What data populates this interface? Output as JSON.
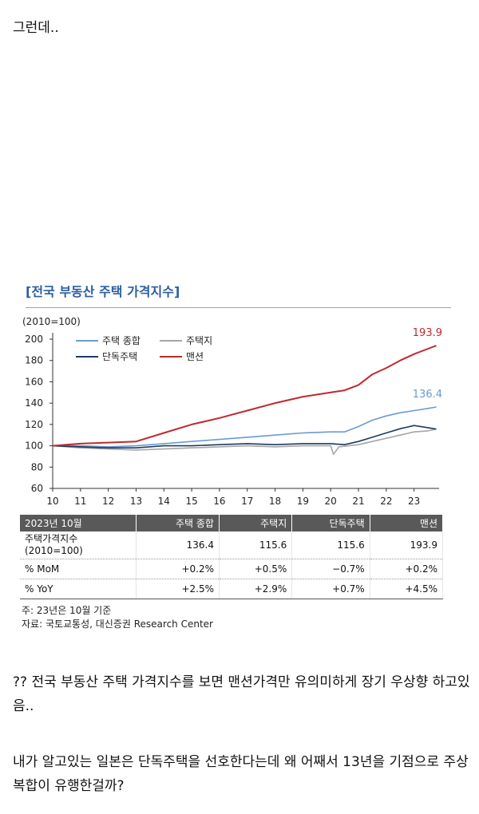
{
  "post": {
    "intro": "그런데..",
    "para1": "?? 전국 부동산 주택 가격지수를 보면 맨션가격만 유의미하게 장기 우상향 하고있음..",
    "para2": "내가 알고있는 일본은 단독주택을 선호한다는데 왜 어째서 13년을 기점으로 주상복합이 유행한걸까?"
  },
  "figure": {
    "title": "[전국 부동산 주택 가격지수]",
    "unit": "(2010=100)",
    "notes": [
      "주: 23년은 10월 기준",
      "자료: 국토교통성, 대신증권 Research Center"
    ]
  },
  "colors": {
    "housing_total": "#6b9bd0",
    "land": "#a6a6a6",
    "detached": "#1f3a5f",
    "mansion": "#c0282e"
  },
  "chart_data": {
    "type": "line",
    "x_tick_labels": [
      "10",
      "11",
      "12",
      "13",
      "14",
      "15",
      "16",
      "17",
      "18",
      "19",
      "20",
      "21",
      "22",
      "23"
    ],
    "xlim": [
      2010.0,
      2023.9
    ],
    "ylim": [
      60,
      200
    ],
    "y_ticks": [
      60,
      80,
      100,
      120,
      140,
      160,
      180,
      200
    ],
    "grid": false,
    "legend": "top-left",
    "end_labels": [
      "193.9",
      "136.4"
    ],
    "series": [
      {
        "name": "주택 종합",
        "color_key": "housing_total",
        "end_label": "136.4",
        "x": [
          2010.0,
          2011.0,
          2012.0,
          2013.0,
          2014.0,
          2015.0,
          2016.0,
          2017.0,
          2018.0,
          2019.0,
          2020.0,
          2020.5,
          2021.0,
          2021.5,
          2022.0,
          2022.5,
          2023.0,
          2023.5,
          2023.8
        ],
        "values": [
          100,
          100,
          99,
          100,
          102,
          104,
          106,
          108,
          110,
          112,
          113,
          113,
          118,
          124,
          128,
          131,
          133,
          135,
          136.4
        ]
      },
      {
        "name": "주택지",
        "color_key": "land",
        "x": [
          2010.0,
          2011.0,
          2012.0,
          2013.0,
          2014.0,
          2015.0,
          2016.0,
          2017.0,
          2018.0,
          2019.0,
          2020.0,
          2020.1,
          2020.3,
          2021.0,
          2021.5,
          2022.0,
          2022.5,
          2023.0,
          2023.5,
          2023.8
        ],
        "values": [
          100,
          98,
          97,
          96,
          97,
          98,
          99,
          100,
          99,
          100,
          100,
          92,
          99,
          101,
          104,
          107,
          110,
          113,
          114,
          115.6
        ]
      },
      {
        "name": "단독주택",
        "color_key": "detached",
        "x": [
          2010.0,
          2011.0,
          2012.0,
          2013.0,
          2014.0,
          2015.0,
          2016.0,
          2017.0,
          2018.0,
          2019.0,
          2020.0,
          2020.5,
          2021.0,
          2021.5,
          2022.0,
          2022.5,
          2023.0,
          2023.5,
          2023.8
        ],
        "values": [
          100,
          99,
          98,
          98,
          100,
          100,
          101,
          102,
          101,
          102,
          102,
          101,
          104,
          108,
          112,
          116,
          119,
          117,
          115.6
        ]
      },
      {
        "name": "맨션",
        "color_key": "mansion",
        "end_label": "193.9",
        "x": [
          2010.0,
          2011.0,
          2012.0,
          2013.0,
          2014.0,
          2015.0,
          2016.0,
          2017.0,
          2018.0,
          2019.0,
          2020.0,
          2020.5,
          2021.0,
          2021.5,
          2022.0,
          2022.5,
          2023.0,
          2023.5,
          2023.8
        ],
        "values": [
          100,
          102,
          103,
          104,
          112,
          120,
          126,
          133,
          140,
          146,
          150,
          152,
          157,
          167,
          173,
          180,
          186,
          191,
          193.9
        ]
      }
    ]
  },
  "table": {
    "headers": [
      "2023년 10월",
      "주택 종합",
      "주택지",
      "단독주택",
      "맨션"
    ],
    "rows": [
      {
        "label1": "주택가격지수",
        "label2": "(2010=100)",
        "values": [
          "136.4",
          "115.6",
          "115.6",
          "193.9"
        ]
      },
      {
        "label1": "% MoM",
        "values": [
          "+0.2%",
          "+0.5%",
          "−0.7%",
          "+0.2%"
        ]
      },
      {
        "label1": "% YoY",
        "values": [
          "+2.5%",
          "+2.9%",
          "+0.7%",
          "+4.5%"
        ]
      }
    ]
  }
}
